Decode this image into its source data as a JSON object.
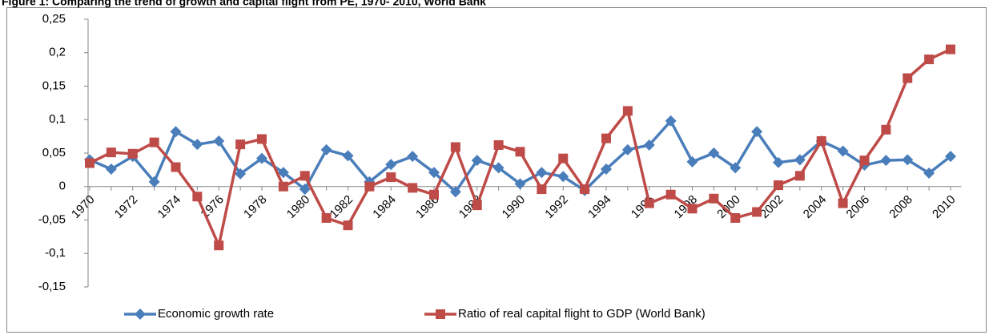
{
  "chart_data": {
    "type": "line",
    "title": "Figure 1: Comparing the trend of growth and capital flight from PE, 1970- 2010, World Bank",
    "categories": [
      "1970",
      null,
      "1972",
      null,
      "1974",
      null,
      "1976",
      null,
      "1978",
      null,
      "1980",
      null,
      "1982",
      null,
      "1984",
      null,
      "1986",
      null,
      "1988",
      null,
      "1990",
      null,
      "1992",
      null,
      "1994",
      null,
      "1996",
      null,
      "1998",
      null,
      "2000",
      null,
      "2002",
      null,
      "2004",
      null,
      "2006",
      null,
      "2008",
      null,
      "2010"
    ],
    "series": [
      {
        "name": "Economic growth rate",
        "color": "#4a7ebb",
        "marker": "diamond",
        "values": [
          0.04,
          0.026,
          0.045,
          0.007,
          0.082,
          0.063,
          0.068,
          0.019,
          0.042,
          0.021,
          -0.004,
          0.055,
          0.046,
          0.007,
          0.033,
          0.045,
          0.021,
          -0.008,
          0.039,
          0.028,
          0.004,
          0.021,
          0.015,
          -0.006,
          0.026,
          0.055,
          0.062,
          0.098,
          0.037,
          0.05,
          0.028,
          0.082,
          0.036,
          0.04,
          0.068,
          0.053,
          0.032,
          0.039,
          0.04,
          0.02,
          0.045
        ]
      },
      {
        "name": "Ratio of real capital flight to GDP (World Bank)",
        "color": "#be4b48",
        "marker": "square",
        "values": [
          0.035,
          0.051,
          0.049,
          0.066,
          0.029,
          -0.015,
          -0.088,
          0.063,
          0.071,
          0.0,
          0.016,
          -0.047,
          -0.058,
          0.0,
          0.014,
          -0.002,
          -0.012,
          0.059,
          -0.028,
          0.062,
          0.052,
          -0.004,
          0.042,
          -0.004,
          0.072,
          0.113,
          -0.025,
          -0.012,
          -0.033,
          -0.018,
          -0.047,
          -0.038,
          0.002,
          0.016,
          0.068,
          -0.025,
          0.039,
          0.085,
          0.162,
          0.19,
          0.205
        ]
      }
    ],
    "ylim": [
      -0.15,
      0.25
    ],
    "yticks": [
      {
        "value": -0.15,
        "label": "-0,15"
      },
      {
        "value": -0.1,
        "label": "-0,1"
      },
      {
        "value": -0.05,
        "label": "-0,05"
      },
      0,
      {
        "value": 0.05,
        "label": "0,05"
      },
      {
        "value": 0.1,
        "label": "0,1"
      },
      {
        "value": 0.15,
        "label": "0,15"
      },
      {
        "value": 0.2,
        "label": "0,2"
      },
      {
        "value": 0.25,
        "label": "0,25"
      }
    ],
    "grid": false,
    "legend": "bottom"
  }
}
